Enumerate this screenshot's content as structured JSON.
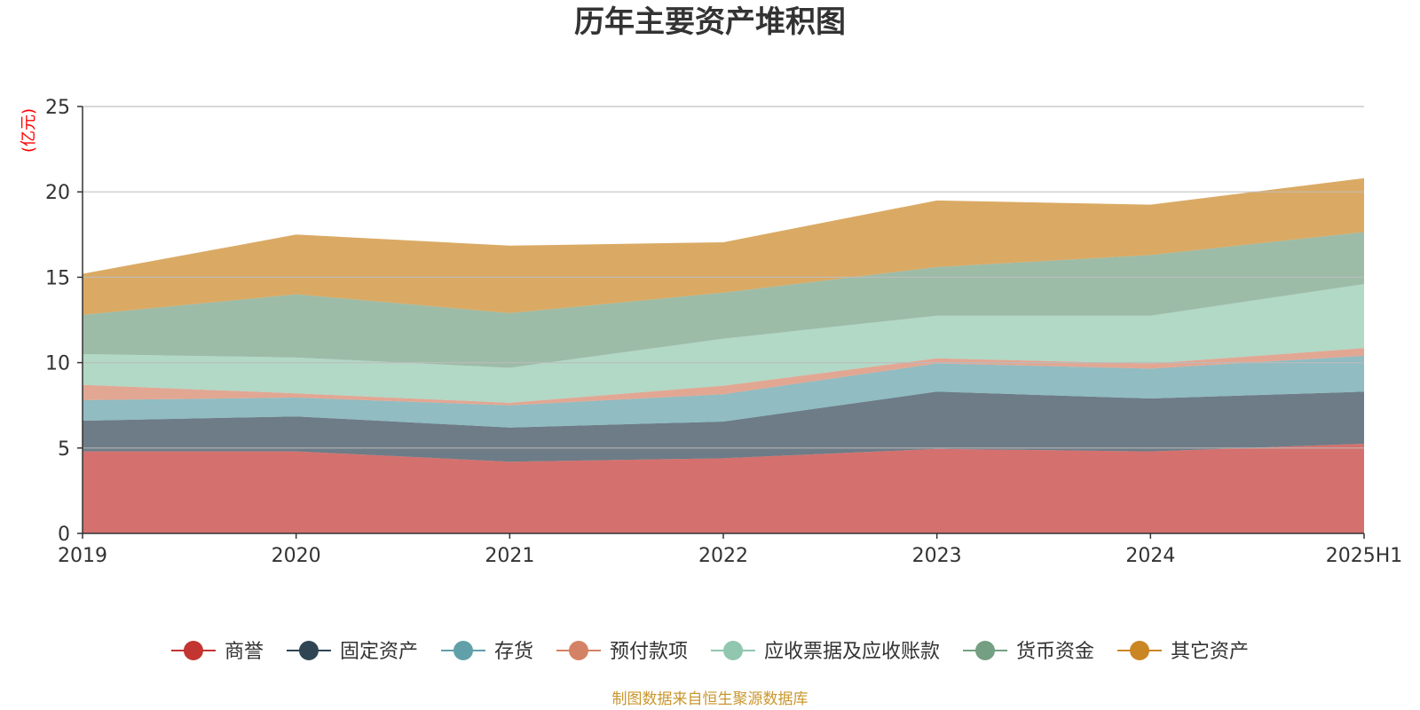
{
  "chart_data": {
    "type": "area",
    "stacked": true,
    "title": "历年主要资产堆积图",
    "unit_label": "(亿元)",
    "categories": [
      "2019",
      "2020",
      "2021",
      "2022",
      "2023",
      "2024",
      "2025H1"
    ],
    "ylim": [
      0,
      25
    ],
    "yticks": [
      0,
      5,
      10,
      15,
      20,
      25
    ],
    "grid": true,
    "legend_position": "bottom",
    "series": [
      {
        "name": "商誉",
        "color": "#c23531",
        "values": [
          4.8,
          4.8,
          4.2,
          4.4,
          4.95,
          4.8,
          5.25
        ]
      },
      {
        "name": "固定资产",
        "color": "#2f4554",
        "values": [
          1.8,
          2.05,
          2.0,
          2.15,
          3.35,
          3.1,
          3.05
        ]
      },
      {
        "name": "存货",
        "color": "#61a0a8",
        "values": [
          1.2,
          1.1,
          1.3,
          1.6,
          1.65,
          1.75,
          2.1
        ]
      },
      {
        "name": "预付款项",
        "color": "#d48265",
        "values": [
          0.9,
          0.25,
          0.15,
          0.5,
          0.3,
          0.3,
          0.45
        ]
      },
      {
        "name": "应收票据及应收账款",
        "color": "#91c7ae",
        "values": [
          1.8,
          2.1,
          2.05,
          2.75,
          2.5,
          2.8,
          3.75
        ]
      },
      {
        "name": "货币资金",
        "color": "#749f83",
        "values": [
          2.3,
          3.7,
          3.2,
          2.7,
          2.85,
          3.55,
          3.05
        ]
      },
      {
        "name": "其它资产",
        "color": "#ca8622",
        "values": [
          2.4,
          3.5,
          3.95,
          2.95,
          3.9,
          2.95,
          3.15
        ]
      }
    ]
  },
  "source_text": "制图数据来自恒生聚源数据库",
  "colors": {
    "unit_label": "#ff0000",
    "source_text": "#c9972d",
    "axis": "#333333",
    "grid": "#bbbbbb"
  }
}
